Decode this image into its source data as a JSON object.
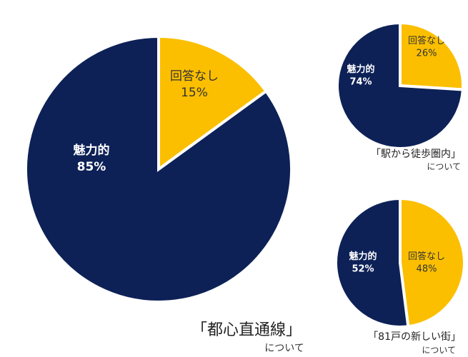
{
  "chart_data": [
    {
      "type": "pie",
      "categories": [
        "回答なし",
        "魅力的"
      ],
      "values": [
        15,
        85
      ],
      "value_labels": [
        "15%",
        "85%"
      ],
      "colors": [
        "#fbbf00",
        "#0d2157"
      ],
      "title": "「都心直通線」",
      "subtitle": "について"
    },
    {
      "type": "pie",
      "categories": [
        "回答なし",
        "魅力的"
      ],
      "values": [
        26,
        74
      ],
      "value_labels": [
        "26%",
        "74%"
      ],
      "colors": [
        "#fbbf00",
        "#0d2157"
      ],
      "title": "「駅から徒歩圏内」",
      "subtitle": "について"
    },
    {
      "type": "pie",
      "categories": [
        "回答なし",
        "魅力的"
      ],
      "values": [
        48,
        52
      ],
      "value_labels": [
        "48%",
        "52%"
      ],
      "colors": [
        "#fbbf00",
        "#0d2157"
      ],
      "title": "「81戸の新しい街」",
      "subtitle": "について"
    }
  ]
}
